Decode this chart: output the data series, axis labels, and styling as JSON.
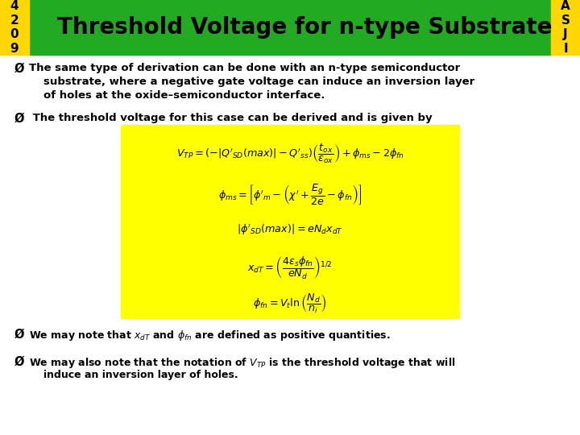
{
  "title": "Threshold Voltage for n-type Substrate",
  "header_bg": "#22AA22",
  "header_left_bg": "#FFD700",
  "header_right_bg": "#FFD700",
  "header_left_text": "4\n2\n0\n9",
  "header_right_text": "A\nS\nJ\nI",
  "header_text_color": "#000000",
  "slide_bg": "#FFFFFF",
  "title_fontsize": 20,
  "title_color": "#000000",
  "bullet_color": "#000000",
  "bullet1_line1": "The same type of derivation can be done with an n-type semiconductor",
  "bullet1_line2": "substrate, where a negative gate voltage can induce an inversion layer",
  "bullet1_line3": "of holes at the oxide–semiconductor interface.",
  "bullet2": " The threshold voltage for this case can be derived and is given by",
  "bullet3": "We may note that $x_{dT}$ and $\\phi_{fn}$ are defined as positive quantities.",
  "bullet4_line1": "We may also note that the notation of $V_{TP}$ is the threshold voltage that will",
  "bullet4_line2": "induce an inversion layer of holes.",
  "formula_bg": "#FFFF00",
  "formula1": "$V_{TP} = (-|Q'_{SD}(max)|-Q'_{ss})\\left(\\dfrac{t_{ox}}{\\epsilon_{ox}}\\right) + \\phi_{ms} - 2\\phi_{fn}$",
  "formula2": "$\\phi_{ms} = \\left[\\phi'_m - \\left(\\chi' + \\dfrac{E_g}{2e} - \\phi_{fn}\\right)\\right]$",
  "formula3": "$|\\phi'_{SD}(max)| = eN_d x_{dT}$",
  "formula4": "$x_{dT} = \\left(\\dfrac{4\\epsilon_s \\phi_{fn}}{eN_d}\\right)^{1/2}$",
  "formula5": "$\\phi_{fn} = V_t \\ln\\left(\\dfrac{N_d}{n_i}\\right)$"
}
